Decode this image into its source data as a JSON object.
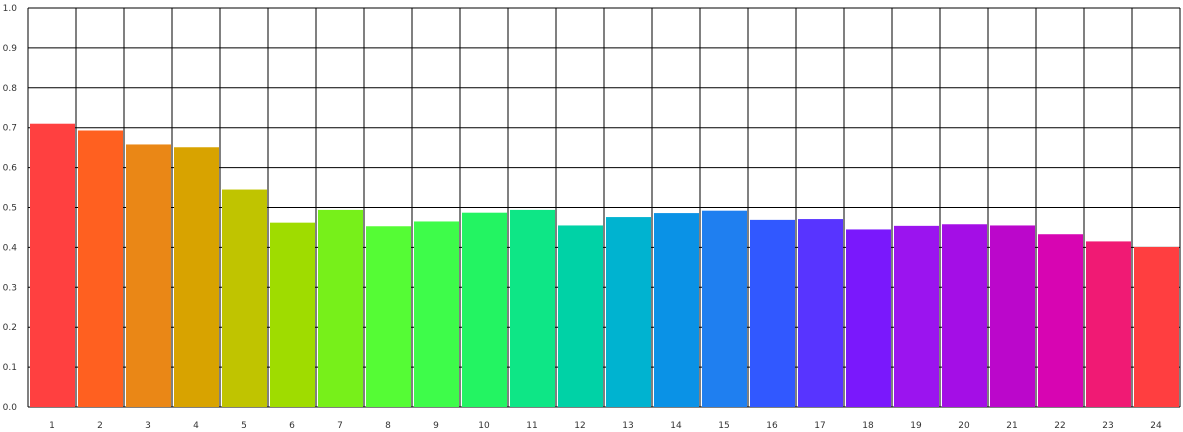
{
  "chart_data": {
    "type": "bar",
    "title": "",
    "xlabel": "",
    "ylabel": "",
    "ylim": [
      0,
      1.0
    ],
    "y_ticks": [
      "0.0",
      "0.1",
      "0.2",
      "0.3",
      "0.4",
      "0.5",
      "0.6",
      "0.7",
      "0.8",
      "0.9",
      "1.0"
    ],
    "categories": [
      "1",
      "2",
      "3",
      "4",
      "5",
      "6",
      "7",
      "8",
      "9",
      "10",
      "11",
      "12",
      "13",
      "14",
      "15",
      "16",
      "17",
      "18",
      "19",
      "20",
      "21",
      "22",
      "23",
      "24"
    ],
    "values": [
      0.71,
      0.693,
      0.658,
      0.651,
      0.545,
      0.462,
      0.494,
      0.453,
      0.465,
      0.487,
      0.494,
      0.455,
      0.476,
      0.486,
      0.492,
      0.469,
      0.471,
      0.445,
      0.454,
      0.458,
      0.455,
      0.433,
      0.415,
      0.401
    ],
    "colors": [
      "#ff4040",
      "#ff6020",
      "#ea8716",
      "#d8a300",
      "#c0c400",
      "#9fdc00",
      "#77f01a",
      "#55fc35",
      "#3efc4a",
      "#23f462",
      "#0ee686",
      "#00d2a6",
      "#00b3d0",
      "#0a92e6",
      "#1f7ff0",
      "#3158ff",
      "#5834ff",
      "#7a18fc",
      "#9b14ef",
      "#a40ee6",
      "#bb07cb",
      "#d705b2",
      "#f01a74",
      "#ff3e40"
    ],
    "grid": true
  }
}
